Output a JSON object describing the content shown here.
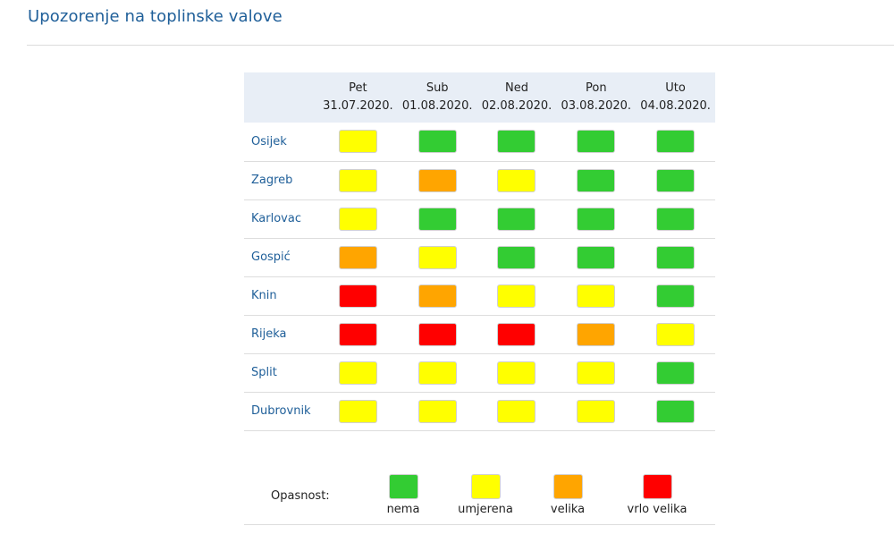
{
  "title": "Upozorenje na toplinske valove",
  "colors": {
    "nema": "#33cc33",
    "umjerena": "#ffff00",
    "velika": "#ffa500",
    "vrlo_velika": "#ff0000",
    "title": "#1f5f99",
    "header_bg": "#e8eef6"
  },
  "days": [
    {
      "name": "Pet",
      "date": "31.07.2020."
    },
    {
      "name": "Sub",
      "date": "01.08.2020."
    },
    {
      "name": "Ned",
      "date": "02.08.2020."
    },
    {
      "name": "Pon",
      "date": "03.08.2020."
    },
    {
      "name": "Uto",
      "date": "04.08.2020."
    }
  ],
  "cities": [
    {
      "name": "Osijek",
      "levels": [
        "umjerena",
        "nema",
        "nema",
        "nema",
        "nema"
      ]
    },
    {
      "name": "Zagreb",
      "levels": [
        "umjerena",
        "velika",
        "umjerena",
        "nema",
        "nema"
      ]
    },
    {
      "name": "Karlovac",
      "levels": [
        "umjerena",
        "nema",
        "nema",
        "nema",
        "nema"
      ]
    },
    {
      "name": "Gospić",
      "levels": [
        "velika",
        "umjerena",
        "nema",
        "nema",
        "nema"
      ]
    },
    {
      "name": "Knin",
      "levels": [
        "vrlo_velika",
        "velika",
        "umjerena",
        "umjerena",
        "nema"
      ]
    },
    {
      "name": "Rijeka",
      "levels": [
        "vrlo_velika",
        "vrlo_velika",
        "vrlo_velika",
        "velika",
        "umjerena"
      ]
    },
    {
      "name": "Split",
      "levels": [
        "umjerena",
        "umjerena",
        "umjerena",
        "umjerena",
        "nema"
      ]
    },
    {
      "name": "Dubrovnik",
      "levels": [
        "umjerena",
        "umjerena",
        "umjerena",
        "umjerena",
        "nema"
      ]
    }
  ],
  "legend": {
    "label": "Opasnost:",
    "items": [
      {
        "key": "nema",
        "label": "nema"
      },
      {
        "key": "umjerena",
        "label": "umjerena"
      },
      {
        "key": "velika",
        "label": "velika"
      },
      {
        "key": "vrlo_velika",
        "label": "vrlo velika"
      }
    ]
  }
}
